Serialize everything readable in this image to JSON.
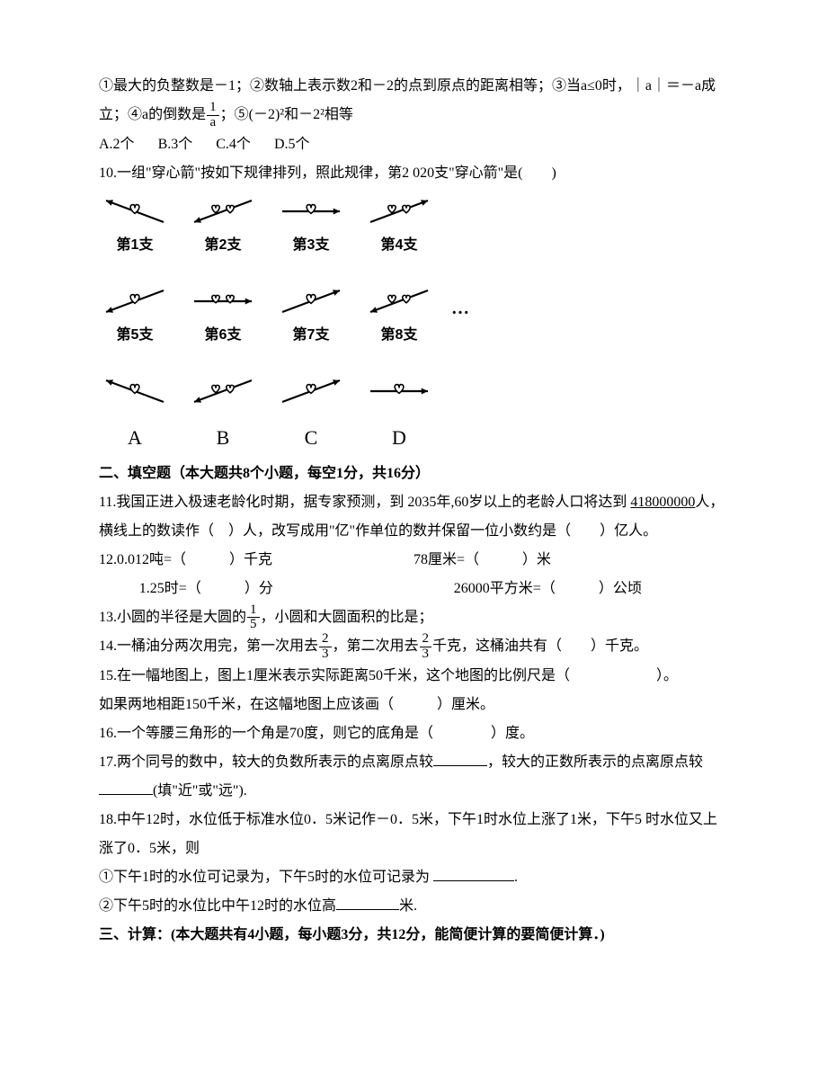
{
  "q9": {
    "stmt1": "①最大的负整数是－1；②数轴上表示数2和－2的点到原点的距离相等；③当a≤0时，｜a｜＝－a成立；④a的倒数是",
    "frac1_num": "1",
    "frac1_den": "a",
    "stmt2": "；⑤(－2)²和－2²相等",
    "optA": "A.2个",
    "optB": "B.3个",
    "optC": "C.4个",
    "optD": "D.5个"
  },
  "q10": {
    "text": "10.一组\"穿心箭\"按如下规律排列，照此规律，第2 020支\"穿心箭\"是(　　)",
    "caps": [
      "第1支",
      "第2支",
      "第3支",
      "第4支",
      "第5支",
      "第6支",
      "第7支",
      "第8支"
    ],
    "letters": [
      "A",
      "B",
      "C",
      "D"
    ],
    "ellipsis": "…",
    "arrows": {
      "comment": "variant 0=up-left,1=right,2=down-left,3=up-right; hearts 1 or 2",
      "row1": [
        {
          "variant": 0,
          "hearts": 1
        },
        {
          "variant": 2,
          "hearts": 2
        },
        {
          "variant": 1,
          "hearts": 1
        },
        {
          "variant": 3,
          "hearts": 2
        }
      ],
      "row2": [
        {
          "variant": 2,
          "hearts": 1
        },
        {
          "variant": 1,
          "hearts": 2
        },
        {
          "variant": 3,
          "hearts": 1
        },
        {
          "variant": 2,
          "hearts": 2
        }
      ],
      "row3": [
        {
          "variant": 0,
          "hearts": 1
        },
        {
          "variant": 2,
          "hearts": 2
        },
        {
          "variant": 3,
          "hearts": 1
        },
        {
          "variant": 1,
          "hearts": 1
        }
      ]
    },
    "svg_colors": {
      "stroke": "#000000",
      "fill_heart": "#ffffff"
    }
  },
  "section2": {
    "title": "二、填空题（本大题共8个小题，每空1分，共16分）"
  },
  "q11": {
    "p1a": "11.我国正进入极速老龄化时期，据专家预测，到 2035年,60岁以上的老龄人口将达到",
    "num_u": "418000000",
    "p1b": "人，横线上的数读作（　）人，改写成用\"亿\"作单位的数并保留一位小数约是（　　）亿人。"
  },
  "q12": {
    "l1a": "12.0.012吨=（　　　）千克",
    "l1b": "78厘米=（　　　）米",
    "l2a": "1.25时=（　　　）分",
    "l2b": "26000平方米=（　　　）公顷"
  },
  "q13": {
    "a": "13.小圆的半径是大圆的",
    "num": "1",
    "den": "5",
    "b": "，小圆和大圆面积的比是；"
  },
  "q14": {
    "a": "14.一桶油分两次用完，第一次用去",
    "n1": "2",
    "d1": "3",
    "b": "，第二次用去",
    "n2": "2",
    "d2": "3",
    "c": "千克，这桶油共有（　　）千克。"
  },
  "q15": {
    "p1": "15.在一幅地图上，图上1厘米表示实际距离50千米，这个地图的比例尺是（　　　　　　）。",
    "p2": "如果两地相距150千米，在这幅地图上应该画（　　　）厘米。"
  },
  "q16": {
    "text": "16.一个等腰三角形的一个角是70度，则它的底角是（　　　　）度。"
  },
  "q17": {
    "a": "17.两个同号的数中，较大的负数所表示的点离原点较",
    "b": "，较大的正数所表示的点离原点较",
    "c": "(填\"近\"或\"远\")."
  },
  "q18": {
    "p1": "18.中午12时，水位低于标准水位0．5米记作－0．5米，下午1时水位上涨了1米，下午5 时水位又上涨了0．5米，则",
    "p2a": "①下午1时的水位可记录为，下午5时的水位可记录为 ",
    "p2b": ".",
    "p3a": "②下午5时的水位比中午12时的水位高",
    "p3b": "米."
  },
  "section3": {
    "title": "三、计算：(本大题共有4小题，每小题3分，共12分，能简便计算的要简便计算．)"
  }
}
